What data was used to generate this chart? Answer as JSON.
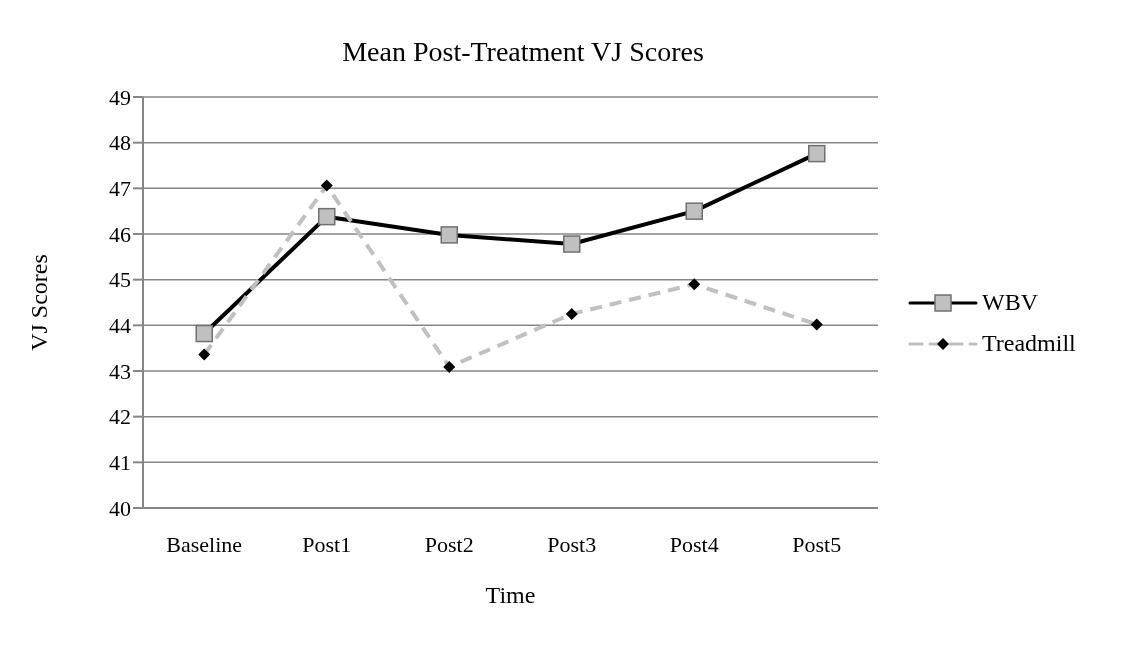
{
  "chart_data": {
    "type": "line",
    "title": "Mean Post-Treatment VJ Scores",
    "xlabel": "Time",
    "ylabel": "VJ Scores",
    "categories": [
      "Baseline",
      "Post1",
      "Post2",
      "Post3",
      "Post4",
      "Post5"
    ],
    "series": [
      {
        "name": "WBV",
        "color": "#000000",
        "marker": "square",
        "line_style": "solid",
        "values": [
          43.82,
          46.38,
          45.98,
          45.78,
          46.5,
          47.76
        ]
      },
      {
        "name": "Treadmill",
        "color": "#c0c0c0",
        "marker": "diamond",
        "line_style": "dashed",
        "values": [
          43.36,
          47.06,
          43.09,
          44.25,
          44.9,
          44.02
        ]
      }
    ],
    "ylim": [
      40,
      49
    ],
    "yticks": [
      40,
      41,
      42,
      43,
      44,
      45,
      46,
      47,
      48,
      49
    ],
    "grid": "y",
    "legend": "right"
  }
}
